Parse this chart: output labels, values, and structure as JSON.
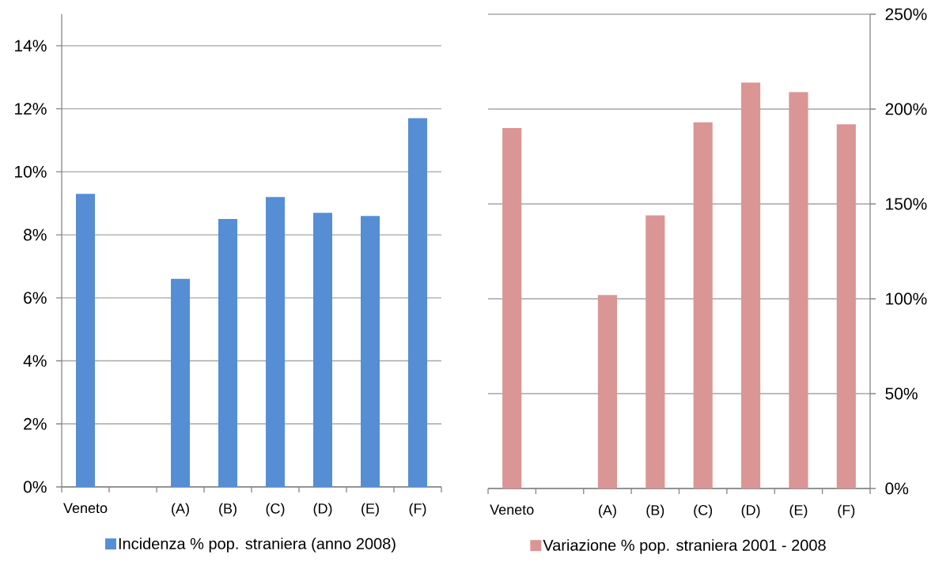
{
  "chart_data": [
    {
      "type": "bar",
      "categories": [
        "Veneto",
        null,
        "(A)",
        "(B)",
        "(C)",
        "(D)",
        "(E)",
        "(F)"
      ],
      "series": [
        {
          "name": "Incidenza % pop. straniera (anno 2008)",
          "color": "#558ed5",
          "values": [
            9.3,
            null,
            6.6,
            8.5,
            9.2,
            8.7,
            8.6,
            11.7
          ]
        }
      ],
      "ylim": [
        0,
        15
      ],
      "yticks": [
        {
          "value": 0,
          "label": "0%"
        },
        {
          "value": 2,
          "label": "2%"
        },
        {
          "value": 4,
          "label": "4%"
        },
        {
          "value": 6,
          "label": "6%"
        },
        {
          "value": 8,
          "label": "8%"
        },
        {
          "value": 10,
          "label": "10%"
        },
        {
          "value": 12,
          "label": "12%"
        },
        {
          "value": 14,
          "label": "14%"
        }
      ],
      "grid": "y",
      "legend": "bottom"
    },
    {
      "type": "bar",
      "categories": [
        "Veneto",
        null,
        "(A)",
        "(B)",
        "(C)",
        "(D)",
        "(E)",
        "(F)"
      ],
      "series": [
        {
          "name": "Variazione % pop. straniera 2001 - 2008",
          "color": "#d99694",
          "axis": "y2",
          "values": [
            190,
            null,
            102,
            144,
            193,
            214,
            209,
            192
          ]
        }
      ],
      "y2lim": [
        0,
        250
      ],
      "y2ticks": [
        {
          "value": 0,
          "label": "0%"
        },
        {
          "value": 50,
          "label": "50%"
        },
        {
          "value": 100,
          "label": "100%"
        },
        {
          "value": 150,
          "label": "150%"
        },
        {
          "value": 200,
          "label": "200%"
        },
        {
          "value": 250,
          "label": "250%"
        }
      ],
      "grid": "y",
      "legend": "bottom"
    }
  ]
}
